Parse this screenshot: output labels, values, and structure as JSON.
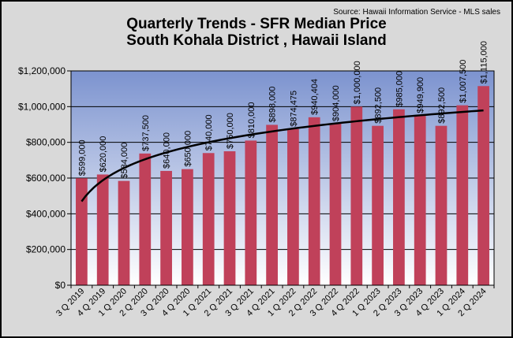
{
  "source": "Source:  Hawaii Information Service - MLS sales",
  "title_line1": "Quarterly Trends - SFR Median Price",
  "title_line2": "South Kohala District , Hawaii Island",
  "colors": {
    "bar": "#c0415a",
    "plot_top": "#7c93cf",
    "plot_bottom": "#ffffff",
    "trendline": "#000000",
    "background": "#d9d9d9"
  },
  "chart_data": {
    "type": "bar",
    "categories": [
      "3 Q 2019",
      "4 Q 2019",
      "1 Q 2020",
      "2 Q 2020",
      "3 Q 2020",
      "4 Q 2020",
      "1 Q 2021",
      "2 Q 2021",
      "3 Q 2021",
      "4 Q 2021",
      "1 Q 2022",
      "2 Q 2022",
      "3 Q 2022",
      "4 Q 2022",
      "1 Q 2023",
      "2 Q 2023",
      "3 Q 2023",
      "4 Q 2023",
      "1 Q 2024",
      "2 Q 2024"
    ],
    "values": [
      599000,
      620000,
      584000,
      737500,
      640000,
      650000,
      740000,
      750000,
      810000,
      898000,
      874475,
      940404,
      904000,
      1000000,
      892500,
      985000,
      949900,
      892500,
      1007500,
      1115000
    ],
    "data_labels": [
      "$599,000",
      "$620,000",
      "$584,000",
      "$737,500",
      "$640,000",
      "$650,000",
      "$740,000",
      "$750,000",
      "$810,000",
      "$898,000",
      "$874,475",
      "$940,404",
      "$904,000",
      "$1,000,000",
      "$892,500",
      "$985,000",
      "$949,900",
      "$892,500",
      "$1,007,500",
      "$1,115,000"
    ],
    "ylim": [
      0,
      1200000
    ],
    "yticks": [
      0,
      200000,
      400000,
      600000,
      800000,
      1000000,
      1200000
    ],
    "ytick_labels": [
      "$0",
      "$200,000",
      "$400,000",
      "$600,000",
      "$800,000",
      "$1,000,000",
      "$1,200,000"
    ],
    "xlabel": "",
    "ylabel": "",
    "grid": true,
    "trendline": "logarithmic"
  }
}
